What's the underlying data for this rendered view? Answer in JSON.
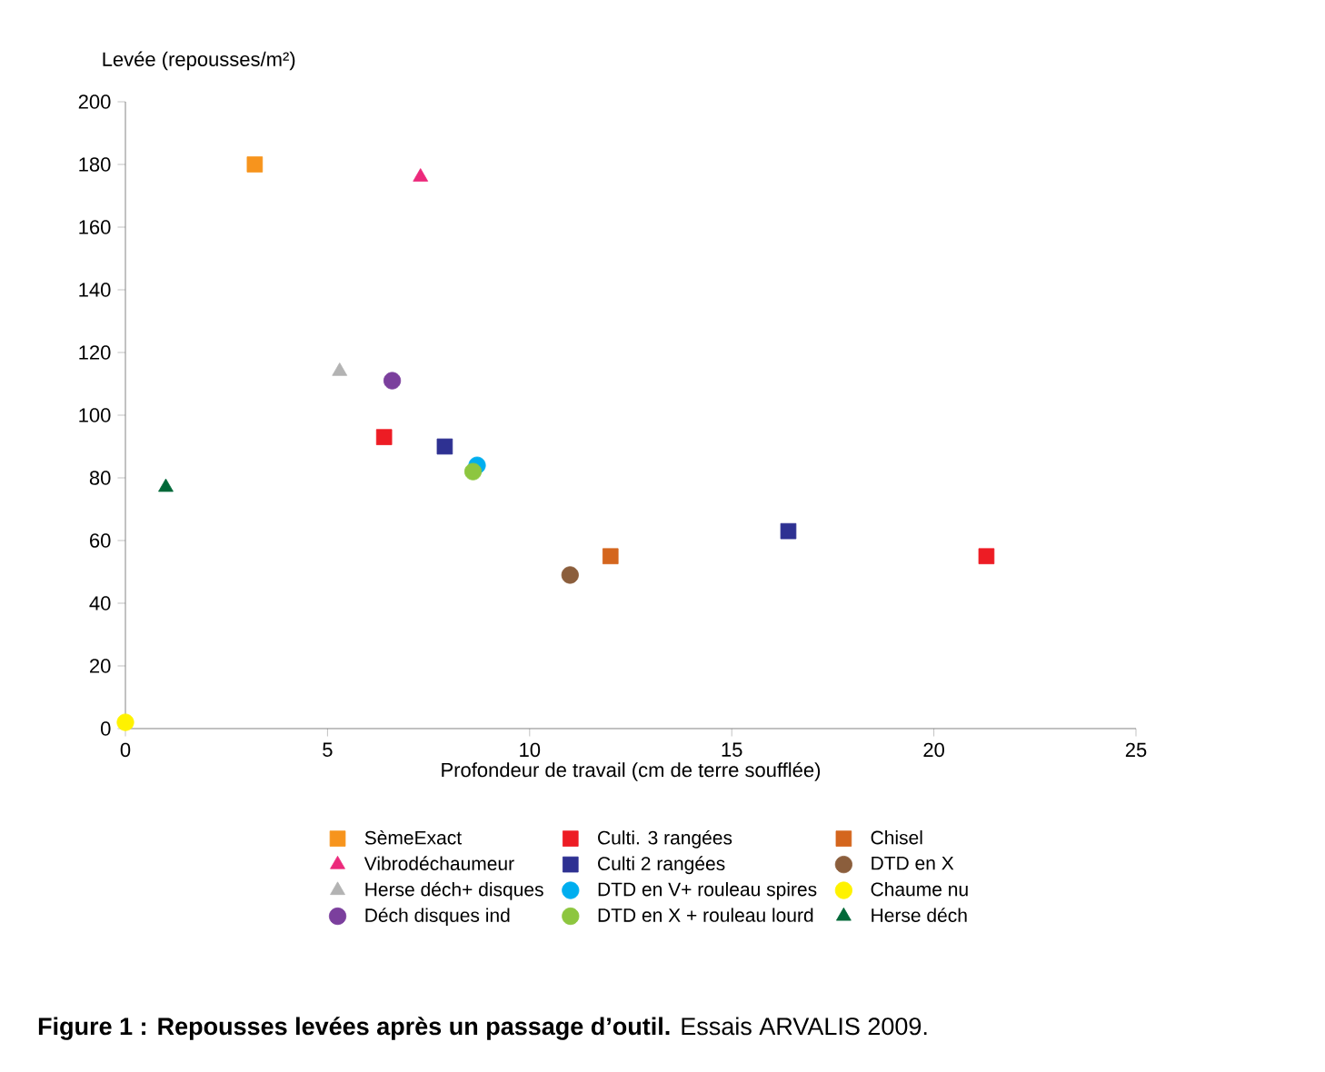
{
  "chart_data": {
    "type": "scatter",
    "title": "**Figure 1 : Repousses levées après un passage d’outil.** Essais ARVALIS 2009.",
    "xlabel": "Profondeur de travail (cm de terre soufflée)",
    "ylabel": "Levée (repousses/m²)",
    "xlim": [
      0,
      25
    ],
    "xticks": [
      0,
      5,
      10,
      15,
      20,
      25
    ],
    "ylim": [
      0,
      200
    ],
    "yticks": [
      0,
      20,
      40,
      60,
      80,
      100,
      120,
      140,
      160,
      180,
      200
    ],
    "grid": false,
    "legend": "bottom",
    "series": [
      {
        "name": "SèmeExact",
        "color": "#f7941d",
        "marker": "square",
        "x": [
          3.2
        ],
        "values": [
          180
        ]
      },
      {
        "name": "Vibrodéchaumeur",
        "color": "#ec297b",
        "marker": "triangle",
        "x": [
          7.3
        ],
        "values": [
          176
        ]
      },
      {
        "name": "Herse déch+ disques",
        "color": "#b3b3b3",
        "marker": "triangle",
        "x": [
          5.3
        ],
        "values": [
          114
        ]
      },
      {
        "name": "Déch disques ind",
        "color": "#7b3f9d",
        "marker": "circle",
        "x": [
          6.6
        ],
        "values": [
          111
        ]
      },
      {
        "name": "Culti. 3 rangées",
        "color": "#ed1c24",
        "marker": "square",
        "x": [
          6.4,
          21.3
        ],
        "values": [
          93,
          55
        ]
      },
      {
        "name": "Culti 2 rangées",
        "color": "#2e3192",
        "marker": "square",
        "x": [
          7.9,
          16.4
        ],
        "values": [
          90,
          63
        ]
      },
      {
        "name": "DTD en V+ rouleau spires",
        "color": "#00aeef",
        "marker": "circle",
        "x": [
          8.7
        ],
        "values": [
          84
        ]
      },
      {
        "name": "DTD en X + rouleau lourd",
        "color": "#8dc63f",
        "marker": "circle",
        "x": [
          8.6
        ],
        "values": [
          82
        ]
      },
      {
        "name": "Chisel",
        "color": "#d4661e",
        "marker": "square",
        "x": [
          12.0
        ],
        "values": [
          55
        ]
      },
      {
        "name": "DTD en X",
        "color": "#8b5e3c",
        "marker": "circle",
        "x": [
          11.0
        ],
        "values": [
          49
        ]
      },
      {
        "name": "Chaume nu",
        "color": "#fff200",
        "marker": "circle",
        "x": [
          0
        ],
        "values": [
          2
        ]
      },
      {
        "name": "Herse déch",
        "color": "#006838",
        "marker": "triangle",
        "x": [
          1.0
        ],
        "values": [
          77
        ]
      }
    ]
  }
}
